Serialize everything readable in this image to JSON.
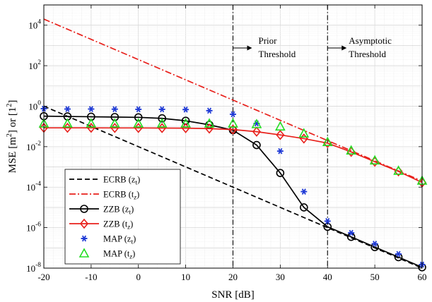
{
  "chart_data": {
    "type": "line",
    "xlabel": "SNR [dB]",
    "ylabel": "MSE [m",
    "ylabel_sup1": "2",
    "ylabel_mid": "] or [1",
    "ylabel_sup2": "2",
    "ylabel_end": "]",
    "xlim": [
      -20,
      60
    ],
    "ylim": [
      1e-08,
      100000.0
    ],
    "yscale": "log",
    "grid": true,
    "legend_position": "bottom-left",
    "x_ticks": [
      -20,
      -10,
      0,
      10,
      20,
      30,
      40,
      50,
      60
    ],
    "x_tick_labels": [
      "-20",
      "-10",
      "0",
      "10",
      "20",
      "30",
      "40",
      "50",
      "60"
    ],
    "y_ticks": [
      {
        "base": "10",
        "exp": "-8",
        "value": 1e-08
      },
      {
        "base": "10",
        "exp": "-6",
        "value": 1e-06
      },
      {
        "base": "10",
        "exp": "-4",
        "value": 0.0001
      },
      {
        "base": "10",
        "exp": "-2",
        "value": 0.01
      },
      {
        "base": "10",
        "exp": "0",
        "value": 1
      },
      {
        "base": "10",
        "exp": "2",
        "value": 100
      },
      {
        "base": "10",
        "exp": "4",
        "value": 10000
      }
    ],
    "thresholds": [
      {
        "x": 20,
        "label_line1": "Prior",
        "label_line2": "Threshold"
      },
      {
        "x": 40,
        "label_line1": "Asymptotic",
        "label_line2": "Threshold"
      }
    ],
    "series": [
      {
        "name": "ECRB",
        "subscript": "(z",
        "sub_char": "t",
        "sub_close": ")",
        "color": "#000000",
        "style": "dashed",
        "marker": "none",
        "x": [
          -20,
          60
        ],
        "y": [
          1.0,
          1e-08
        ]
      },
      {
        "name": "ECRB",
        "subscript": "(t",
        "sub_char": "z",
        "sub_close": ")",
        "color": "#e8201b",
        "style": "dashdot",
        "marker": "none",
        "x": [
          -20,
          60
        ],
        "y": [
          20000,
          0.0002
        ]
      },
      {
        "name": "ZZB",
        "subscript": "(z",
        "sub_char": "t",
        "sub_close": ")",
        "color": "#000000",
        "style": "solid",
        "marker": "circle",
        "x": [
          -20,
          -15,
          -10,
          -5,
          0,
          5,
          10,
          15,
          20,
          25,
          30,
          35,
          40,
          45,
          50,
          55,
          60
        ],
        "y": [
          0.32,
          0.31,
          0.3,
          0.29,
          0.28,
          0.25,
          0.19,
          0.12,
          0.065,
          0.012,
          0.0005,
          1e-05,
          1.1e-06,
          3.5e-07,
          1.1e-07,
          3.5e-08,
          1.1e-08
        ]
      },
      {
        "name": "ZZB",
        "subscript": "(t",
        "sub_char": "z",
        "sub_close": ")",
        "color": "#e8201b",
        "style": "solid",
        "marker": "diamond",
        "x": [
          -20,
          -15,
          -10,
          -5,
          0,
          5,
          10,
          15,
          20,
          25,
          30,
          35,
          40,
          45,
          50,
          55,
          60
        ],
        "y": [
          0.085,
          0.085,
          0.085,
          0.084,
          0.084,
          0.083,
          0.082,
          0.078,
          0.07,
          0.055,
          0.038,
          0.025,
          0.015,
          0.0055,
          0.0018,
          0.0006,
          0.00017
        ]
      },
      {
        "name": "MAP",
        "subscript": "(z",
        "sub_char": "t",
        "sub_close": ")",
        "color": "#1f3ad6",
        "style": "none",
        "marker": "asterisk",
        "x": [
          -20,
          -15,
          -10,
          -5,
          0,
          5,
          10,
          15,
          20,
          25,
          30,
          35,
          40,
          45,
          50,
          55,
          60
        ],
        "y": [
          0.75,
          0.72,
          0.72,
          0.71,
          0.7,
          0.7,
          0.68,
          0.6,
          0.4,
          0.14,
          0.006,
          6e-05,
          2.1e-06,
          5.5e-07,
          1.6e-07,
          5e-08,
          1.5e-08
        ]
      },
      {
        "name": "MAP",
        "subscript": "(t",
        "sub_char": "z",
        "sub_close": ")",
        "color": "#22dd22",
        "style": "none",
        "marker": "triangle",
        "x": [
          -20,
          -15,
          -10,
          -5,
          0,
          5,
          10,
          15,
          20,
          25,
          30,
          35,
          40,
          45,
          50,
          55,
          60
        ],
        "y": [
          0.14,
          0.14,
          0.14,
          0.14,
          0.14,
          0.14,
          0.14,
          0.14,
          0.14,
          0.13,
          0.1,
          0.045,
          0.017,
          0.0065,
          0.0021,
          0.00065,
          0.00021
        ]
      }
    ]
  }
}
